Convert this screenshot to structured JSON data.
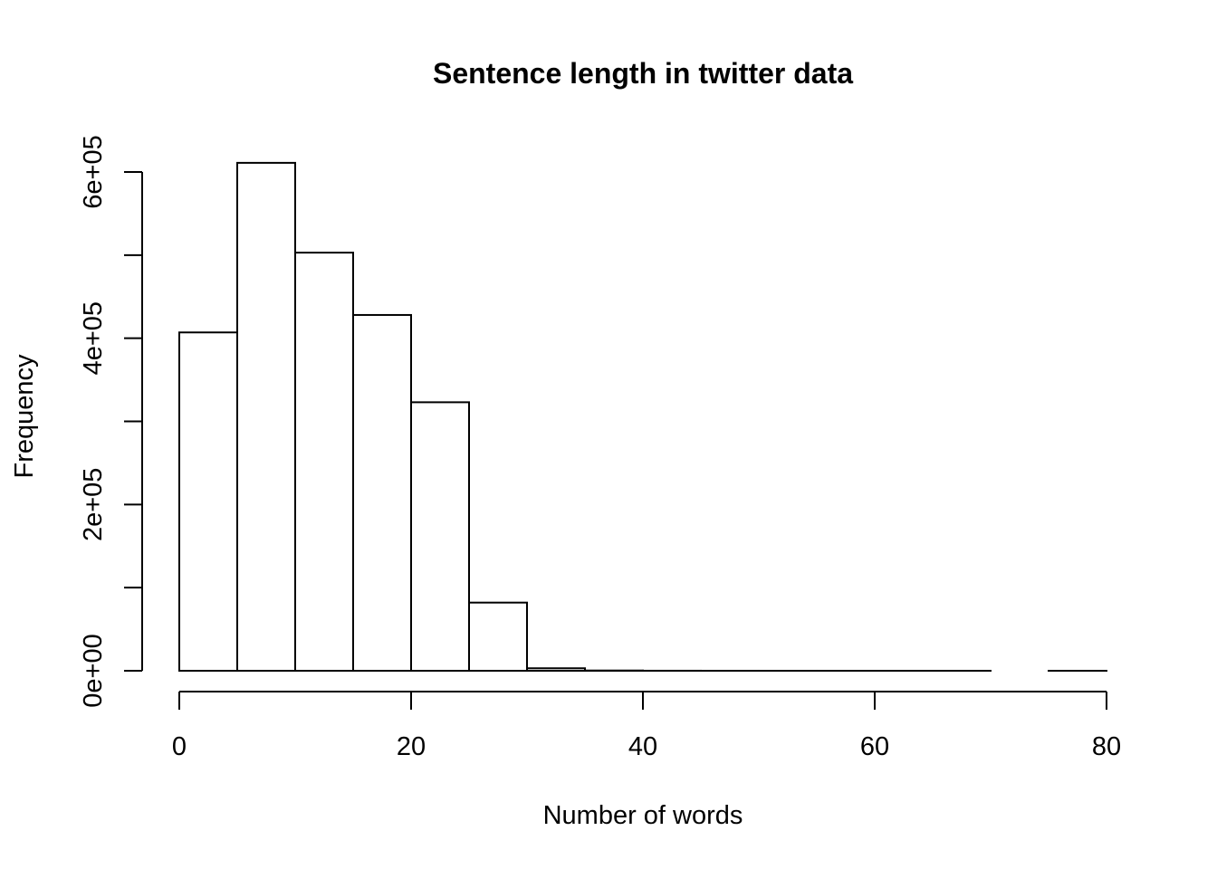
{
  "chart_data": {
    "type": "bar",
    "title": "Sentence length in twitter data",
    "xlabel": "Number of words",
    "ylabel": "Frequency",
    "bins": [
      {
        "x0": 0,
        "x1": 5,
        "count": 407000
      },
      {
        "x0": 5,
        "x1": 10,
        "count": 611000
      },
      {
        "x0": 10,
        "x1": 15,
        "count": 503000
      },
      {
        "x0": 15,
        "x1": 20,
        "count": 428000
      },
      {
        "x0": 20,
        "x1": 25,
        "count": 323000
      },
      {
        "x0": 25,
        "x1": 30,
        "count": 82000
      },
      {
        "x0": 30,
        "x1": 35,
        "count": 3000
      },
      {
        "x0": 35,
        "x1": 40,
        "count": 300
      },
      {
        "x0": 40,
        "x1": 45,
        "count": 50
      },
      {
        "x0": 45,
        "x1": 50,
        "count": 10
      },
      {
        "x0": 50,
        "x1": 55,
        "count": 5
      },
      {
        "x0": 55,
        "x1": 60,
        "count": 2
      },
      {
        "x0": 60,
        "x1": 65,
        "count": 1
      },
      {
        "x0": 65,
        "x1": 70,
        "count": 1
      },
      {
        "x0": 70,
        "x1": 75,
        "count": 0
      },
      {
        "x0": 75,
        "x1": 80,
        "count": 1
      }
    ],
    "xlim": [
      0,
      80
    ],
    "ylim": [
      0,
      600000
    ],
    "x_ticks": [
      0,
      20,
      40,
      60,
      80
    ],
    "x_tick_labels": [
      "0",
      "20",
      "40",
      "60",
      "80"
    ],
    "y_ticks": [
      0,
      200000,
      400000,
      600000
    ],
    "y_tick_labels": [
      "0e+00",
      "2e+05",
      "4e+05",
      "6e+05"
    ],
    "y_minor_ticks": [
      100000,
      300000,
      500000
    ],
    "grid": false,
    "bar_fill": "#ffffff",
    "bar_stroke": "#000000"
  }
}
